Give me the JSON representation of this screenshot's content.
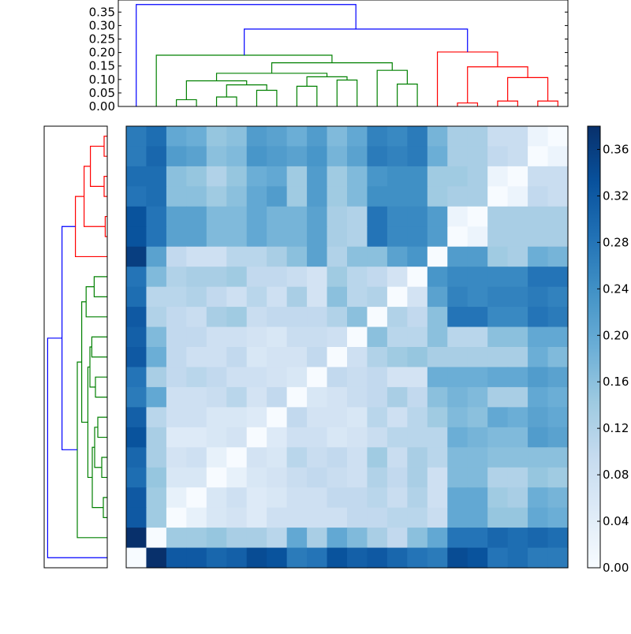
{
  "chart_data": {
    "type": "heatmap",
    "title": "",
    "xlabel": "",
    "ylabel": "",
    "colormap": "Blues",
    "n": 22,
    "colorbar": {
      "vmin": 0.0,
      "vmax": 0.38,
      "ticks": [
        0.0,
        0.04,
        0.08,
        0.12,
        0.16,
        0.2,
        0.24,
        0.28,
        0.32,
        0.36
      ],
      "tick_labels": [
        "0.00",
        "0.04",
        "0.08",
        "0.12",
        "0.16",
        "0.20",
        "0.24",
        "0.28",
        "0.32",
        "0.36"
      ]
    },
    "top_dendrogram": {
      "orientation": "top",
      "ylim": [
        0.0,
        0.39
      ],
      "ticks": [
        0.0,
        0.05,
        0.1,
        0.15,
        0.2,
        0.25,
        0.3,
        0.35
      ],
      "tick_labels": [
        "0.00",
        "0.05",
        "0.10",
        "0.15",
        "0.20",
        "0.25",
        "0.30",
        "0.35"
      ],
      "colors": {
        "above_threshold": "#0000ff",
        "cluster_1": "#008000",
        "cluster_2": "#ff0000"
      },
      "links": [
        {
          "l": 2,
          "r": 3,
          "h": 0.025,
          "c": "cluster_1"
        },
        {
          "l": 4,
          "r": 5,
          "h": 0.035,
          "c": "cluster_1"
        },
        {
          "l": 6,
          "r": 7,
          "h": 0.06,
          "c": "cluster_1"
        },
        {
          "l": 4.5,
          "r": 6.5,
          "h": 0.08,
          "c": "cluster_1",
          "lh": 0.035,
          "rh": 0.06
        },
        {
          "l": 2.5,
          "r": 5.5,
          "h": 0.095,
          "c": "cluster_1",
          "lh": 0.025,
          "rh": 0.08
        },
        {
          "l": 8,
          "r": 9,
          "h": 0.075,
          "c": "cluster_1"
        },
        {
          "l": 10,
          "r": 11,
          "h": 0.098,
          "c": "cluster_1"
        },
        {
          "l": 8.5,
          "r": 10.5,
          "h": 0.11,
          "c": "cluster_1",
          "lh": 0.075,
          "rh": 0.098
        },
        {
          "l": 4.0,
          "r": 9.5,
          "h": 0.123,
          "c": "cluster_1",
          "lh": 0.095,
          "rh": 0.11
        },
        {
          "l": 13,
          "r": 14,
          "h": 0.083,
          "c": "cluster_1"
        },
        {
          "l": 12,
          "r": 13.5,
          "h": 0.134,
          "c": "cluster_1",
          "lh": 0,
          "rh": 0.083
        },
        {
          "l": 6.75,
          "r": 12.75,
          "h": 0.162,
          "c": "cluster_1",
          "lh": 0.123,
          "rh": 0.134
        },
        {
          "l": 1,
          "r": 9.75,
          "h": 0.19,
          "c": "cluster_1",
          "lh": 0,
          "rh": 0.162
        },
        {
          "l": 16,
          "r": 17,
          "h": 0.013,
          "c": "cluster_2"
        },
        {
          "l": 18,
          "r": 19,
          "h": 0.02,
          "c": "cluster_2"
        },
        {
          "l": 20,
          "r": 21,
          "h": 0.02,
          "c": "cluster_2"
        },
        {
          "l": 18.5,
          "r": 20.5,
          "h": 0.107,
          "c": "cluster_2",
          "lh": 0.02,
          "rh": 0.02
        },
        {
          "l": 16.5,
          "r": 19.5,
          "h": 0.147,
          "c": "cluster_2",
          "lh": 0.013,
          "rh": 0.107
        },
        {
          "l": 15,
          "r": 18,
          "h": 0.202,
          "c": "cluster_2",
          "lh": 0,
          "rh": 0.147
        },
        {
          "l": 5.38,
          "r": 16.5,
          "h": 0.287,
          "c": "above_threshold",
          "lh": 0.19,
          "rh": 0.202
        },
        {
          "l": 0,
          "r": 10.94,
          "h": 0.378,
          "c": "above_threshold",
          "lh": 0,
          "rh": 0.287
        }
      ]
    },
    "left_dendrogram": {
      "orientation": "left",
      "xlim": [
        0.4,
        0.0
      ],
      "note": "mirror of top dendrogram; row r corresponds to leaf 21-r"
    },
    "matrix": [
      [
        0.27,
        0.29,
        0.2,
        0.19,
        0.15,
        0.16,
        0.22,
        0.21,
        0.19,
        0.22,
        0.17,
        0.2,
        0.26,
        0.25,
        0.27,
        0.18,
        0.13,
        0.13,
        0.09,
        0.09,
        0.02,
        0.0
      ],
      [
        0.27,
        0.3,
        0.22,
        0.21,
        0.16,
        0.17,
        0.23,
        0.22,
        0.21,
        0.23,
        0.18,
        0.21,
        0.27,
        0.26,
        0.27,
        0.19,
        0.13,
        0.13,
        0.1,
        0.09,
        0.0,
        0.02
      ],
      [
        0.29,
        0.29,
        0.16,
        0.15,
        0.12,
        0.15,
        0.19,
        0.2,
        0.14,
        0.22,
        0.14,
        0.17,
        0.23,
        0.24,
        0.24,
        0.14,
        0.14,
        0.13,
        0.02,
        0.0,
        0.09,
        0.09
      ],
      [
        0.28,
        0.29,
        0.16,
        0.16,
        0.14,
        0.16,
        0.2,
        0.22,
        0.14,
        0.22,
        0.14,
        0.17,
        0.24,
        0.24,
        0.24,
        0.14,
        0.13,
        0.13,
        0.0,
        0.02,
        0.1,
        0.09
      ],
      [
        0.33,
        0.28,
        0.21,
        0.21,
        0.17,
        0.17,
        0.2,
        0.18,
        0.18,
        0.21,
        0.13,
        0.12,
        0.28,
        0.25,
        0.25,
        0.22,
        0.02,
        0.0,
        0.13,
        0.13,
        0.13,
        0.13
      ],
      [
        0.33,
        0.28,
        0.21,
        0.21,
        0.17,
        0.17,
        0.2,
        0.18,
        0.18,
        0.21,
        0.13,
        0.12,
        0.28,
        0.25,
        0.25,
        0.22,
        0.0,
        0.02,
        0.13,
        0.13,
        0.13,
        0.13
      ],
      [
        0.36,
        0.21,
        0.1,
        0.08,
        0.08,
        0.11,
        0.11,
        0.13,
        0.16,
        0.21,
        0.12,
        0.16,
        0.16,
        0.21,
        0.23,
        0.0,
        0.22,
        0.22,
        0.14,
        0.13,
        0.19,
        0.18
      ],
      [
        0.28,
        0.17,
        0.12,
        0.13,
        0.13,
        0.14,
        0.1,
        0.1,
        0.09,
        0.07,
        0.14,
        0.11,
        0.1,
        0.07,
        0.0,
        0.23,
        0.25,
        0.25,
        0.25,
        0.25,
        0.28,
        0.28
      ],
      [
        0.29,
        0.11,
        0.11,
        0.12,
        0.1,
        0.08,
        0.11,
        0.08,
        0.13,
        0.07,
        0.16,
        0.11,
        0.12,
        0.0,
        0.07,
        0.21,
        0.26,
        0.25,
        0.26,
        0.26,
        0.27,
        0.26
      ],
      [
        0.32,
        0.12,
        0.1,
        0.09,
        0.13,
        0.14,
        0.09,
        0.1,
        0.1,
        0.1,
        0.12,
        0.16,
        0.0,
        0.12,
        0.1,
        0.16,
        0.28,
        0.28,
        0.25,
        0.25,
        0.28,
        0.27
      ],
      [
        0.31,
        0.17,
        0.1,
        0.1,
        0.08,
        0.08,
        0.07,
        0.06,
        0.09,
        0.09,
        0.08,
        0.0,
        0.16,
        0.11,
        0.11,
        0.16,
        0.11,
        0.11,
        0.16,
        0.16,
        0.2,
        0.2
      ],
      [
        0.32,
        0.19,
        0.1,
        0.08,
        0.08,
        0.1,
        0.06,
        0.07,
        0.07,
        0.1,
        0.0,
        0.08,
        0.12,
        0.14,
        0.15,
        0.13,
        0.13,
        0.13,
        0.13,
        0.13,
        0.19,
        0.17
      ],
      [
        0.28,
        0.13,
        0.1,
        0.11,
        0.1,
        0.08,
        0.08,
        0.07,
        0.06,
        0.0,
        0.1,
        0.09,
        0.1,
        0.07,
        0.07,
        0.19,
        0.19,
        0.19,
        0.2,
        0.2,
        0.22,
        0.21
      ],
      [
        0.27,
        0.2,
        0.08,
        0.08,
        0.09,
        0.11,
        0.07,
        0.1,
        0.0,
        0.06,
        0.07,
        0.09,
        0.1,
        0.13,
        0.1,
        0.16,
        0.18,
        0.17,
        0.13,
        0.13,
        0.2,
        0.19
      ],
      [
        0.31,
        0.11,
        0.08,
        0.08,
        0.06,
        0.06,
        0.05,
        0.0,
        0.1,
        0.07,
        0.07,
        0.06,
        0.11,
        0.08,
        0.11,
        0.14,
        0.17,
        0.16,
        0.2,
        0.19,
        0.21,
        0.2
      ],
      [
        0.33,
        0.13,
        0.05,
        0.05,
        0.06,
        0.07,
        0.0,
        0.05,
        0.08,
        0.08,
        0.06,
        0.07,
        0.09,
        0.11,
        0.11,
        0.11,
        0.19,
        0.18,
        0.17,
        0.17,
        0.22,
        0.21
      ],
      [
        0.3,
        0.13,
        0.07,
        0.08,
        0.03,
        0.0,
        0.07,
        0.06,
        0.11,
        0.09,
        0.1,
        0.08,
        0.14,
        0.09,
        0.13,
        0.11,
        0.17,
        0.17,
        0.16,
        0.16,
        0.16,
        0.16
      ],
      [
        0.29,
        0.15,
        0.06,
        0.06,
        0.0,
        0.03,
        0.06,
        0.07,
        0.09,
        0.1,
        0.09,
        0.08,
        0.12,
        0.1,
        0.13,
        0.08,
        0.17,
        0.17,
        0.12,
        0.12,
        0.15,
        0.14
      ],
      [
        0.32,
        0.14,
        0.03,
        0.0,
        0.06,
        0.08,
        0.05,
        0.06,
        0.08,
        0.08,
        0.1,
        0.1,
        0.11,
        0.09,
        0.12,
        0.08,
        0.2,
        0.2,
        0.14,
        0.13,
        0.19,
        0.18
      ],
      [
        0.32,
        0.14,
        0.0,
        0.03,
        0.06,
        0.07,
        0.05,
        0.08,
        0.08,
        0.08,
        0.08,
        0.1,
        0.1,
        0.11,
        0.11,
        0.09,
        0.2,
        0.2,
        0.15,
        0.15,
        0.2,
        0.19
      ],
      [
        0.38,
        0.0,
        0.14,
        0.14,
        0.15,
        0.13,
        0.13,
        0.11,
        0.2,
        0.13,
        0.2,
        0.17,
        0.13,
        0.1,
        0.16,
        0.2,
        0.28,
        0.28,
        0.3,
        0.29,
        0.3,
        0.29
      ],
      [
        0.0,
        0.38,
        0.32,
        0.32,
        0.3,
        0.31,
        0.34,
        0.33,
        0.27,
        0.28,
        0.33,
        0.31,
        0.32,
        0.3,
        0.28,
        0.27,
        0.34,
        0.33,
        0.28,
        0.29,
        0.27,
        0.27
      ]
    ]
  }
}
